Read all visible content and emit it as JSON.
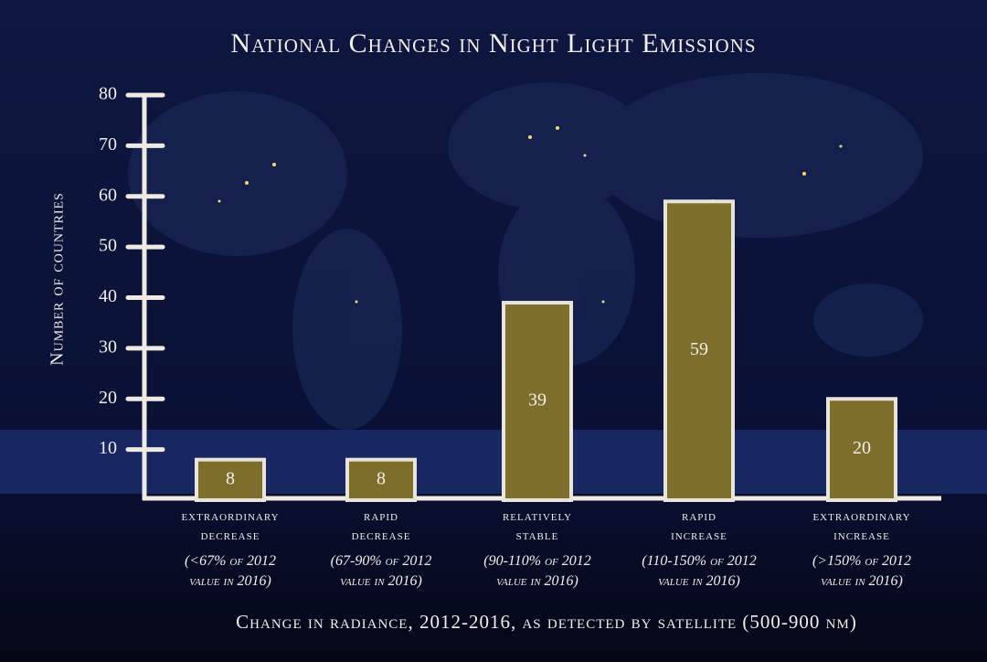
{
  "chart_data": {
    "type": "bar",
    "title": "National Changes in Night Light Emissions",
    "y_label": "Number of countries",
    "x_label": "Change in radiance, 2012-2016, as detected by satellite (500-900 nm)",
    "categories": [
      "extraordinary decrease",
      "rapid decrease",
      "relatively stable",
      "rapid increase",
      "extraordinary increase"
    ],
    "category_notes": [
      "(<67% of 2012 value in 2016)",
      "(67-90% of 2012 value in 2016)",
      "(90-110% of 2012 value in 2016)",
      "(110-150% of 2012 value in 2016)",
      "(>150% of 2012 value in 2016)"
    ],
    "values": [
      8,
      8,
      39,
      59,
      20
    ],
    "color": "#7d6e2c",
    "ylim": [
      0,
      80
    ],
    "yticks": [
      10,
      20,
      30,
      40,
      50,
      60,
      70,
      80
    ]
  }
}
